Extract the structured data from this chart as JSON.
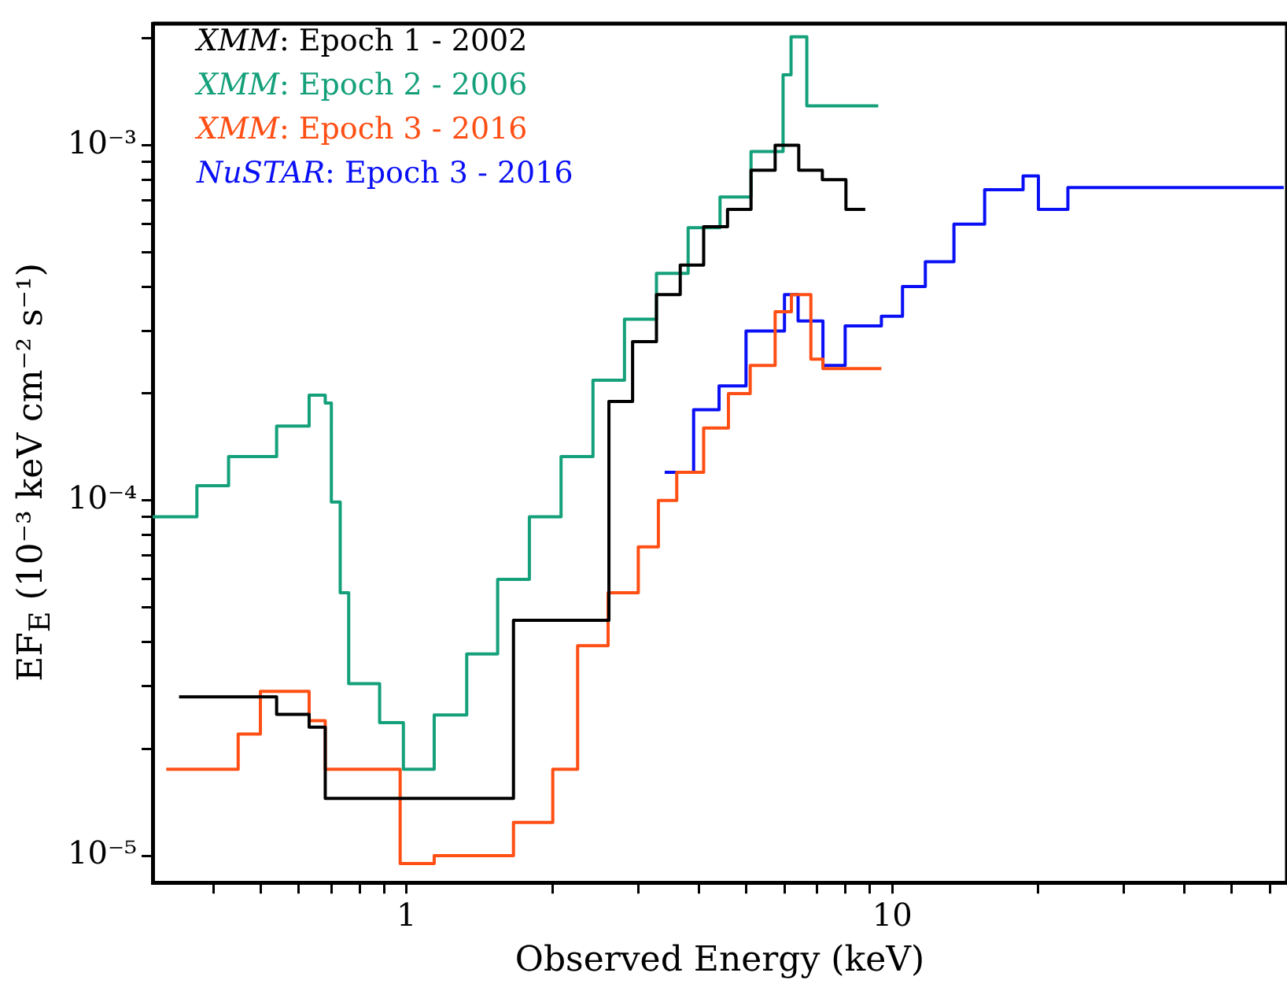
{
  "chart_data": {
    "type": "step",
    "xlabel": "Observed Energy (keV)",
    "ylabel": "EF$_{E}$ (10⁻³ keV cm⁻² s⁻¹)",
    "log": "xy",
    "legend": "top left",
    "xlim": [
      0.3,
      65
    ],
    "ylim": [
      8.4e-06,
      0.0022
    ],
    "xticks": [
      {
        "value": 0.4,
        "label": null
      },
      {
        "value": 0.5,
        "label": null
      },
      {
        "value": 0.6,
        "label": null
      },
      {
        "value": 0.7,
        "label": null
      },
      {
        "value": 0.8,
        "label": null
      },
      {
        "value": 0.9,
        "label": null
      },
      1,
      {
        "value": 2,
        "label": null
      },
      {
        "value": 3,
        "label": null
      },
      {
        "value": 4,
        "label": null
      },
      {
        "value": 5,
        "label": null
      },
      {
        "value": 6,
        "label": null
      },
      {
        "value": 7,
        "label": null
      },
      {
        "value": 8,
        "label": null
      },
      {
        "value": 9,
        "label": null
      },
      10,
      {
        "value": 20,
        "label": null
      },
      {
        "value": 30,
        "label": null
      },
      {
        "value": 40,
        "label": null
      },
      {
        "value": 50,
        "label": null
      },
      {
        "value": 60,
        "label": null
      }
    ],
    "yticks": [
      {
        "value": 1e-05,
        "label": "10⁻⁵"
      },
      {
        "value": 2e-05,
        "label": null
      },
      {
        "value": 3e-05,
        "label": null
      },
      {
        "value": 4e-05,
        "label": null
      },
      {
        "value": 5e-05,
        "label": null
      },
      {
        "value": 6e-05,
        "label": null
      },
      {
        "value": 7e-05,
        "label": null
      },
      {
        "value": 8e-05,
        "label": null
      },
      {
        "value": 9e-05,
        "label": null
      },
      {
        "value": 0.0001,
        "label": "10⁻⁴"
      },
      {
        "value": 0.0002,
        "label": null
      },
      {
        "value": 0.0003,
        "label": null
      },
      {
        "value": 0.0004,
        "label": null
      },
      {
        "value": 0.0005,
        "label": null
      },
      {
        "value": 0.0006,
        "label": null
      },
      {
        "value": 0.0007,
        "label": null
      },
      {
        "value": 0.0008,
        "label": null
      },
      {
        "value": 0.0009,
        "label": null
      },
      {
        "value": 0.001,
        "label": "10⁻³"
      },
      {
        "value": 0.002,
        "label": null
      }
    ],
    "series": [
      {
        "name": "XMM: Epoch 1 - 2002",
        "color": "#000000",
        "x": [
          0.34,
          0.54,
          0.63,
          0.68,
          1.66,
          2.61,
          2.92,
          3.27,
          3.66,
          4.09,
          4.58,
          5.12,
          5.74,
          6.42,
          7.18,
          8.03,
          8.8
        ],
        "values": [
          2.8e-05,
          2.5e-05,
          2.3e-05,
          1.45e-05,
          4.6e-05,
          0.00019,
          0.00028,
          0.00038,
          0.00046,
          0.00059,
          0.00066,
          0.00085,
          0.001,
          0.00085,
          0.0008,
          0.00066,
          0.00066
        ]
      },
      {
        "name": "XMM: Epoch 2 - 2006",
        "color": "#14a07a",
        "x": [
          0.3,
          0.37,
          0.43,
          0.54,
          0.63,
          0.68,
          0.7,
          0.73,
          0.76,
          0.88,
          0.985,
          1.14,
          1.33,
          1.54,
          1.79,
          2.08,
          2.42,
          2.81,
          3.27,
          3.8,
          4.42,
          5.12,
          5.96,
          6.19,
          6.67,
          7.46,
          9.36
        ],
        "values": [
          9e-05,
          0.00011,
          0.000133,
          0.000162,
          0.000198,
          0.000188,
          9.9e-05,
          5.5e-05,
          3.05e-05,
          2.37e-05,
          1.75e-05,
          2.49e-05,
          3.7e-05,
          6e-05,
          9e-05,
          0.000133,
          0.000218,
          0.000324,
          0.000436,
          0.000586,
          0.000715,
          0.00096,
          0.00158,
          0.00202,
          0.00129,
          0.00129,
          0.00129
        ]
      },
      {
        "name": "XMM: Epoch 3 - 2016",
        "color": "#ff4f14",
        "x": [
          0.32,
          0.45,
          0.5,
          0.63,
          0.68,
          0.85,
          0.97,
          1.14,
          1.45,
          1.66,
          2.0,
          2.25,
          2.6,
          3.0,
          3.3,
          3.6,
          4.09,
          4.6,
          5.1,
          5.74,
          6.2,
          6.8,
          7.2,
          9.5
        ],
        "values": [
          1.75e-05,
          2.2e-05,
          2.9e-05,
          2.4e-05,
          1.75e-05,
          1.75e-05,
          9.5e-06,
          1e-05,
          1e-05,
          1.24e-05,
          1.75e-05,
          3.9e-05,
          5.5e-05,
          7.4e-05,
          0.0001,
          0.00012,
          0.00016,
          0.0002,
          0.00024,
          0.00034,
          0.00038,
          0.00025,
          0.000235,
          0.000235
        ]
      },
      {
        "name": "NuSTAR: Epoch 3 - 2016",
        "color": "#0a10f5",
        "x": [
          3.4,
          3.9,
          4.4,
          5.0,
          6.0,
          6.4,
          7.2,
          8.0,
          9.5,
          10.5,
          11.7,
          13.4,
          15.5,
          18.6,
          20,
          23,
          64
        ],
        "values": [
          0.00012,
          0.00018,
          0.00021,
          0.0003,
          0.00038,
          0.00032,
          0.00024,
          0.00031,
          0.00033,
          0.0004,
          0.00047,
          0.0006,
          0.00075,
          0.00082,
          0.00066,
          0.00076,
          0.00076
        ]
      }
    ]
  }
}
